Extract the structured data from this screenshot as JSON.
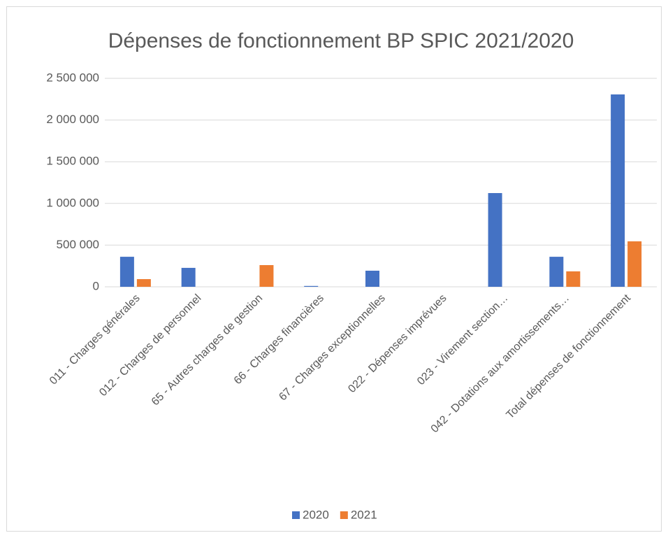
{
  "chart_data": {
    "type": "bar",
    "title": "Dépenses de fonctionnement BP SPIC 2021/2020",
    "categories": [
      "011 - Charges générales",
      "012 - Charges de personnel",
      "65 - Autres charges de gestion",
      "66 - Charges financières",
      "67 - Charges exceptionnelles",
      "022 - Dépenses imprévues",
      "023 - Virement section…",
      "042 - Dotations aux amortissements…",
      "Total dépenses de fonctionnement"
    ],
    "series": [
      {
        "name": "2020",
        "color": "#4472c4",
        "values": [
          360000,
          227000,
          0,
          10000,
          193000,
          0,
          1124000,
          360000,
          2307000
        ]
      },
      {
        "name": "2021",
        "color": "#ed7d31",
        "values": [
          92000,
          0,
          260000,
          0,
          0,
          0,
          0,
          185000,
          545000
        ]
      }
    ],
    "ylim": [
      0,
      2500000
    ],
    "yticks": [
      0,
      {
        "value": 500000,
        "label": "500 000"
      },
      {
        "value": 1000000,
        "label": "1 000 000"
      },
      {
        "value": 1500000,
        "label": "1 500 000"
      },
      {
        "value": 2000000,
        "label": "2 000 000"
      },
      {
        "value": 2500000,
        "label": "2 500 000"
      }
    ],
    "grid": true,
    "legend": "bottom"
  }
}
